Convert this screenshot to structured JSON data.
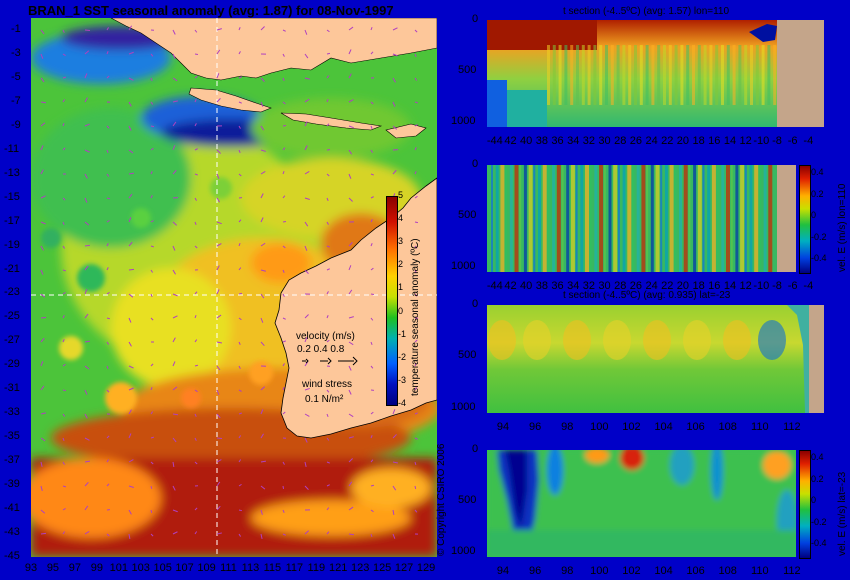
{
  "chart_data": [
    {
      "type": "heatmap",
      "title": "BRAN_1  SST seasonal anomaly  (avg: 1.87)  for 08-Nov-1997",
      "x_ticks": [
        "93",
        "95",
        "97",
        "99",
        "101",
        "103",
        "105",
        "107",
        "109",
        "111",
        "113",
        "115",
        "117",
        "119",
        "121",
        "123",
        "125",
        "127",
        "129"
      ],
      "y_ticks": [
        "-1",
        "-3",
        "-5",
        "-7",
        "-9",
        "-11",
        "-13",
        "-15",
        "-17",
        "-19",
        "-21",
        "-23",
        "-25",
        "-27",
        "-29",
        "-31",
        "-33",
        "-35",
        "-37",
        "-39",
        "-41",
        "-43",
        "-45"
      ],
      "xlim": [
        93,
        130
      ],
      "ylim": [
        -45,
        0
      ],
      "colorbar": {
        "label": "temperature seasonal anomaly (ºC)",
        "ticks": [
          "5",
          "4",
          "3",
          "2",
          "1",
          "0",
          "-1",
          "-2",
          "-3",
          "-4"
        ]
      },
      "legend": {
        "velocity_label": "velocity (m/s)",
        "velocity_scale": "0.2 0.4 0.8",
        "wind_label": "wind stress",
        "wind_scale": "0.1 N/m²"
      },
      "copyright": "© Copyright CSIRO 2006",
      "guides": {
        "lon": 110,
        "lat": -23
      }
    },
    {
      "type": "heatmap",
      "title": "t section (-4..5ºC) (avg: 1.57) lon=110",
      "x_ticks": [
        "-44",
        "42",
        "40",
        "38",
        "36",
        "34",
        "32",
        "30",
        "28",
        "26",
        "24",
        "22",
        "20",
        "18",
        "16",
        "14",
        "12",
        "-10",
        "-8",
        "-6",
        "-4"
      ],
      "y_ticks": [
        "0",
        "500",
        "1000"
      ],
      "xlim": [
        -45,
        -2
      ],
      "ylim": [
        1050,
        0
      ]
    },
    {
      "type": "heatmap",
      "title": "",
      "x_ticks": [
        "-44",
        "42",
        "40",
        "38",
        "36",
        "34",
        "32",
        "30",
        "28",
        "26",
        "24",
        "22",
        "20",
        "18",
        "16",
        "14",
        "12",
        "-10",
        "-8",
        "-6",
        "-4"
      ],
      "y_ticks": [
        "0",
        "500",
        "1000"
      ],
      "xlim": [
        -45,
        -2
      ],
      "ylim": [
        1050,
        0
      ],
      "colorbar": {
        "label": "vel. E (m/s) lon=110",
        "ticks": [
          "0.4",
          "0.2",
          "0",
          "-0.2",
          "-0.4"
        ]
      }
    },
    {
      "type": "heatmap",
      "title": "t section (-4..5ºC) (avg: 0.935) lat=-23",
      "x_ticks": [
        "94",
        "96",
        "98",
        "100",
        "102",
        "104",
        "106",
        "108",
        "110",
        "112"
      ],
      "y_ticks": [
        "0",
        "500",
        "1000"
      ],
      "xlim": [
        93,
        114
      ],
      "ylim": [
        1050,
        0
      ]
    },
    {
      "type": "heatmap",
      "title": "",
      "x_ticks": [
        "94",
        "96",
        "98",
        "100",
        "102",
        "104",
        "106",
        "108",
        "110",
        "112"
      ],
      "y_ticks": [
        "0",
        "500",
        "1000"
      ],
      "xlim": [
        93,
        114
      ],
      "ylim": [
        1050,
        0
      ],
      "colorbar": {
        "label": "vel. E (m/s) lat=-23",
        "ticks": [
          "0.4",
          "0.2",
          "0",
          "-0.2",
          "-0.4"
        ]
      }
    }
  ]
}
